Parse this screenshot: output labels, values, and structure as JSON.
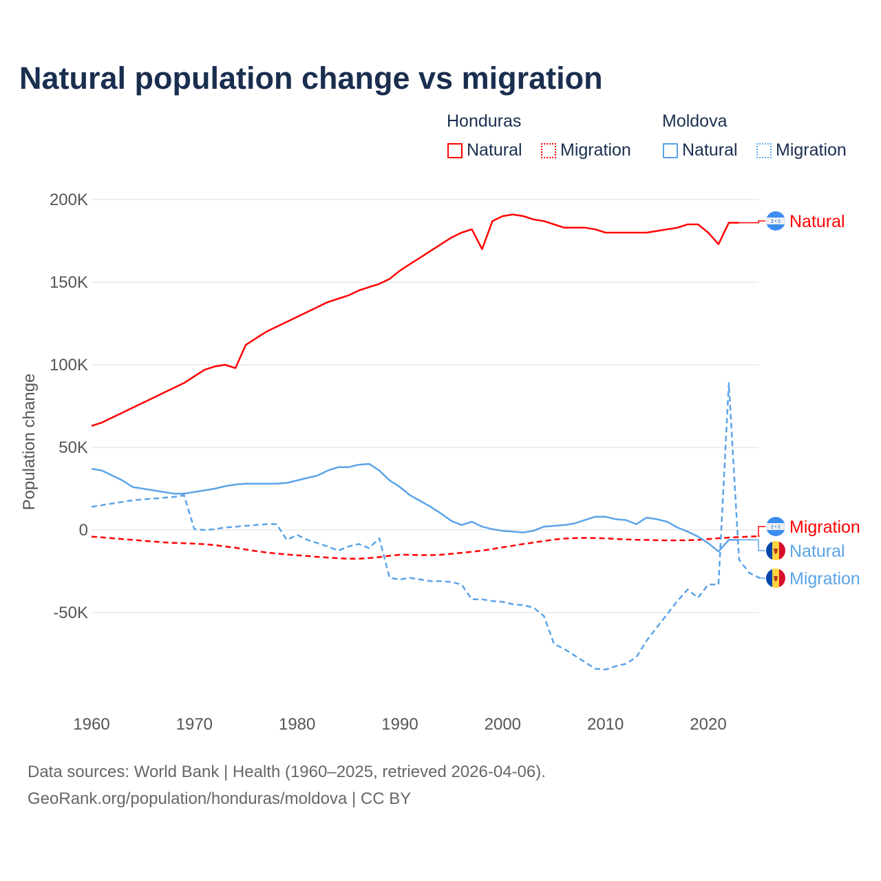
{
  "chart_data": {
    "type": "line",
    "title": "Natural population change vs migration",
    "ylabel": "Population change",
    "xlabel": "",
    "xlim": [
      1960,
      2025
    ],
    "ylim": [
      -100000,
      200000
    ],
    "grid": true,
    "x_ticks": [
      1960,
      1970,
      1980,
      1990,
      2000,
      2010,
      2020
    ],
    "x_tick_labels": [
      "1960",
      "1970",
      "1980",
      "1990",
      "2000",
      "2010",
      "2020"
    ],
    "y_ticks": [
      200000,
      150000,
      100000,
      50000,
      0,
      -50000
    ],
    "y_tick_labels": [
      "200K",
      "150K",
      "100K",
      "50K",
      "0",
      "-50K"
    ],
    "legend": {
      "placement": "top-right",
      "groups": [
        {
          "name": "Honduras",
          "items": [
            "Natural",
            "Migration"
          ]
        },
        {
          "name": "Moldova",
          "items": [
            "Natural",
            "Migration"
          ]
        }
      ]
    },
    "series": [
      {
        "name": "Honduras Natural",
        "label": "Natural",
        "country": "Honduras",
        "color": "#ff0000",
        "dash": false,
        "start": 1960,
        "values": [
          63,
          65,
          68,
          71,
          74,
          77,
          80,
          83,
          86,
          89,
          93,
          97,
          99,
          100,
          98,
          112,
          116,
          120,
          123,
          126,
          129,
          132,
          135,
          138,
          140,
          142,
          145,
          147,
          149,
          152,
          157,
          161,
          165,
          169,
          173,
          177,
          180,
          182,
          170,
          187,
          190,
          191,
          190,
          188,
          187,
          185,
          183,
          183,
          183,
          182,
          180,
          180,
          180,
          180,
          180,
          181,
          182,
          183,
          185,
          185,
          180,
          173,
          186,
          186
        ]
      },
      {
        "name": "Honduras Migration",
        "label": "Migration",
        "country": "Honduras",
        "color": "#ff0000",
        "dash": true,
        "start": 1960,
        "values": [
          -4,
          -4.5,
          -5,
          -5.5,
          -6,
          -6.5,
          -7,
          -7.5,
          -7.8,
          -8,
          -8.3,
          -8.6,
          -9.2,
          -10,
          -10.8,
          -11.8,
          -12.8,
          -13.6,
          -14.3,
          -14.8,
          -15.3,
          -15.8,
          -16.3,
          -16.7,
          -17.1,
          -17.4,
          -17.4,
          -17,
          -16.4,
          -15.6,
          -15,
          -15,
          -15.2,
          -15.2,
          -15,
          -14.4,
          -13.8,
          -13.2,
          -12.5,
          -11.5,
          -10.5,
          -9.5,
          -8.5,
          -7.6,
          -6.7,
          -5.8,
          -5.2,
          -4.9,
          -4.8,
          -4.9,
          -5.1,
          -5.4,
          -5.7,
          -5.9,
          -6,
          -6.2,
          -6.3,
          -6.3,
          -6.2,
          -6,
          -5.5,
          -5,
          -4.6,
          -4.3,
          -4,
          -3.8
        ]
      },
      {
        "name": "Moldova Natural",
        "label": "Natural",
        "country": "Moldova",
        "color": "#5aa3e8",
        "dash": false,
        "start": 1960,
        "values": [
          37,
          36,
          33,
          30,
          26,
          25,
          24,
          23,
          22,
          22,
          23,
          24,
          25,
          26.5,
          27.5,
          28,
          28,
          28,
          28,
          28.5,
          30,
          31.5,
          33,
          36,
          38,
          38,
          39.5,
          40,
          36,
          30,
          26,
          21,
          17.5,
          14,
          10,
          5.5,
          3,
          5,
          2,
          0.5,
          -0.5,
          -1,
          -1.5,
          -0.5,
          2,
          2.5,
          3,
          4,
          6,
          8,
          8,
          6.5,
          6,
          3.5,
          7.5,
          6.5,
          5,
          1.5,
          -1,
          -4,
          -8,
          -13,
          -6,
          -6
        ]
      },
      {
        "name": "Moldova Migration",
        "label": "Migration",
        "country": "Moldova",
        "color": "#5aa3e8",
        "dash": true,
        "start": 1960,
        "values": [
          14,
          15,
          16,
          17,
          18,
          18.5,
          19,
          19.5,
          20,
          21,
          0.5,
          0,
          0.5,
          1.5,
          2,
          2.5,
          3,
          3.5,
          3.5,
          -6,
          -3,
          -6,
          -8,
          -10,
          -12.5,
          -10,
          -8.5,
          -11,
          -5,
          -29,
          -30,
          -29,
          -30,
          -31,
          -31,
          -31.5,
          -33,
          -42,
          -42,
          -43,
          -43.5,
          -45,
          -45.5,
          -47,
          -52,
          -69,
          -72,
          -76,
          -80,
          -84,
          -84.5,
          -82.5,
          -81,
          -77,
          -67,
          -59,
          -51,
          -43,
          -36,
          -41,
          -33,
          -33,
          89,
          -18,
          -26,
          -29
        ]
      }
    ],
    "end_labels": [
      "Natural",
      "Migration",
      "Natural",
      "Migration"
    ]
  },
  "footer": {
    "line1": "Data sources: World Bank | Health (1960–2025, retrieved 2026-04-06).",
    "line2": "GeoRank.org/population/honduras/moldova | CC BY"
  }
}
